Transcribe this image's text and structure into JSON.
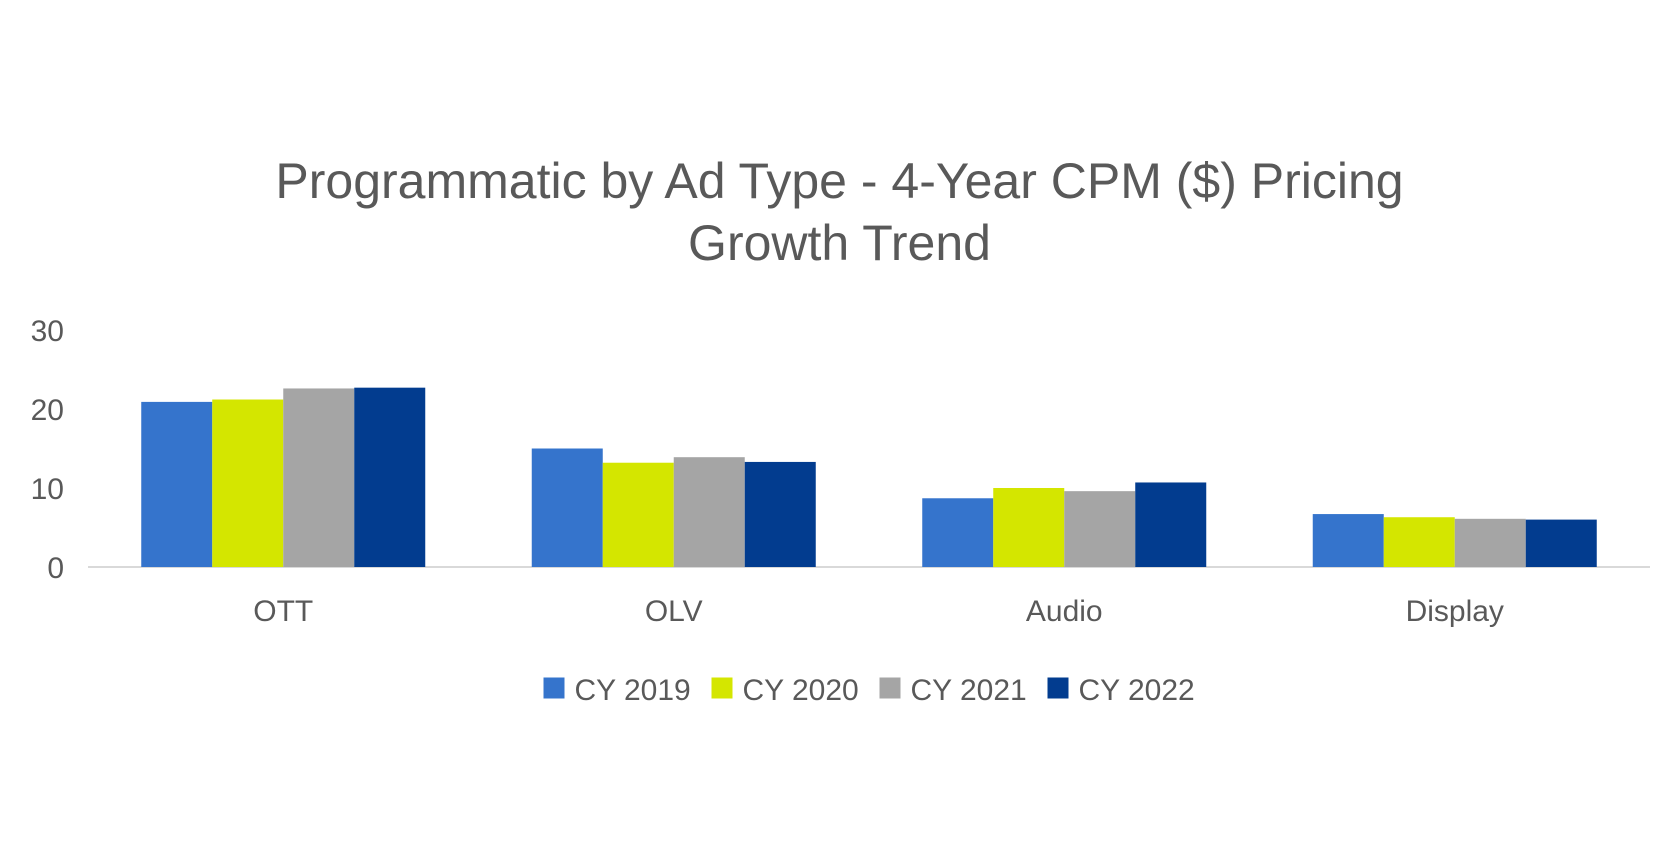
{
  "chart_data": {
    "type": "bar",
    "title_line_1": "Programmatic by Ad Type - 4-Year CPM ($) Pricing",
    "title_line_2": "Growth Trend",
    "categories": [
      "OTT",
      "OLV",
      "Audio",
      "Display"
    ],
    "series": [
      {
        "name": "CY 2019",
        "color": "#3574cc",
        "values": [
          20.9,
          15.0,
          8.7,
          6.7
        ]
      },
      {
        "name": "CY 2020",
        "color": "#d4e600",
        "values": [
          21.2,
          13.2,
          10.0,
          6.3
        ]
      },
      {
        "name": "CY 2021",
        "color": "#a5a5a5",
        "values": [
          22.6,
          13.9,
          9.6,
          6.1
        ]
      },
      {
        "name": "CY 2022",
        "color": "#023c8f",
        "values": [
          22.7,
          13.3,
          10.7,
          6.0
        ]
      }
    ],
    "yticks": [
      0,
      10,
      20,
      30
    ],
    "ylim": [
      0,
      30
    ],
    "xlabel": "",
    "ylabel": "",
    "grid": false,
    "legend_position": "bottom"
  }
}
